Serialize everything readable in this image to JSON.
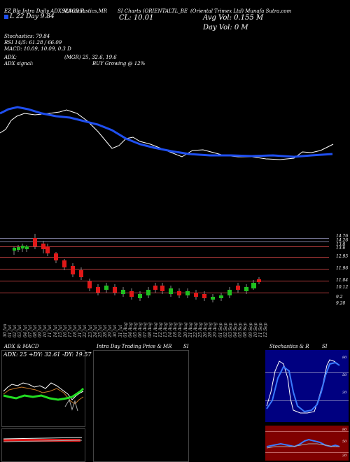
{
  "header": {
    "line1_a": "EZ Bla Intra Daily ADX,MACD,R",
    "line1_b": "SI,Stochastics,MR",
    "line1_c": "SI Charts (ORIENTALTL_BE",
    "line1_d": "(Oriental Trimex Ltd) Munafa Sutra.com",
    "line2_a": "L 22  Day  9.84",
    "close_label": "CL: 10.01",
    "avg_vol": "Avg Vol: 0.155 M",
    "day_vol": "Day Vol: 0   M",
    "stoch": "Stochastics: 79.84",
    "rsi": "RSI 14/5: 61.28 / 66.09",
    "macd": "MACD: 10.09, 10.09, 0.3 D",
    "adx": "ADX:",
    "adx_vals": "(MGR) 25, 32.6, 19.6",
    "adx_signal_lbl": "ADX  signal:",
    "adx_signal": "BUY Growing @ 12%"
  },
  "price_levels": [
    "14.76",
    "14.26",
    "13.8",
    "13.6",
    "12.95",
    "11.96",
    "11.04",
    "10.12",
    "9.2",
    "9.20"
  ],
  "dates": [
    "30 Jun",
    "01 Jul",
    "02 Jul",
    "03 Jul",
    "04 Jul",
    "07 Jul",
    "08 Jul",
    "09 Jul",
    "10 Jul",
    "11 Jul",
    "14 Jul",
    "15 Jul",
    "16 Jul",
    "17 Jul",
    "18 Jul",
    "21 Jul",
    "22 Jul",
    "23 Jul",
    "24 Jul",
    "25 Jul",
    "28 Jul",
    "29 Jul",
    "30 Jul",
    "31 Jul",
    "01 Aug",
    "04 Aug",
    "05 Aug",
    "06 Aug",
    "07 Aug",
    "08 Aug",
    "11 Aug",
    "12 Aug",
    "13 Aug",
    "14 Aug",
    "18 Aug",
    "19 Aug",
    "20 Aug",
    "21 Aug",
    "22 Aug",
    "25 Aug",
    "26 Aug",
    "28 Aug",
    "29 Aug",
    "01 Sep",
    "02 Sep",
    "03 Sep",
    "04 Sep",
    "05 Sep",
    "08 Sep",
    "09 Sep",
    "10 Sep",
    "11 Sep",
    "12 Sep"
  ],
  "panels": {
    "adx_title": "ADX  & MACD",
    "adx_readout": "ADX: 25 +DY: 32.61 -DY: 19.57",
    "intra_title": "Intra  Day Trading Price  & MR",
    "intra_title_b": "SI",
    "stoch_title": "Stochastics & R",
    "stoch_title_b": "SI",
    "stoch_ticks": [
      "80",
      "50",
      "20"
    ],
    "rsi_ticks": [
      "80",
      "50",
      "20"
    ]
  },
  "colors": {
    "up": "#1fbf1f",
    "down": "#e01818",
    "ma": "#1f4ff0",
    "grid": "#7a7a9a",
    "pivot": "#b03a3a"
  }
}
